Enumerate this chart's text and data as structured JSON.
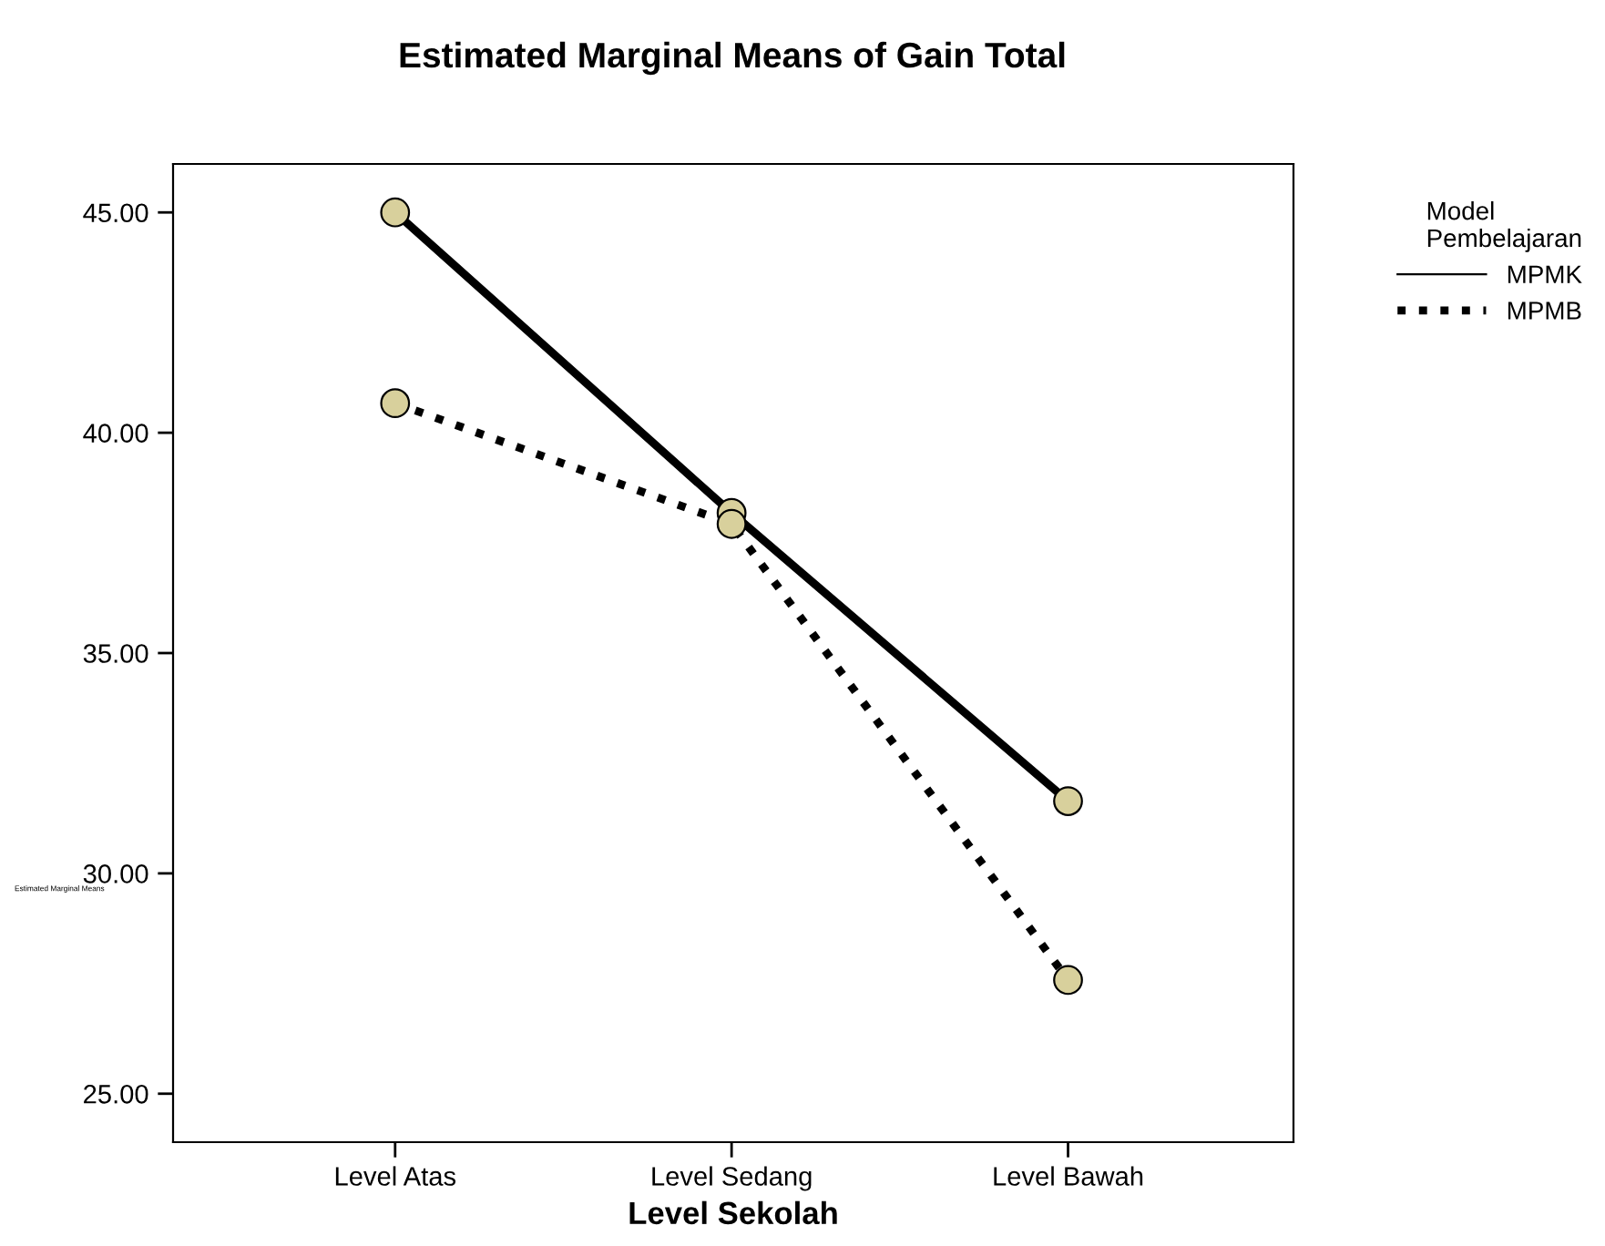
{
  "chart_data": {
    "type": "line",
    "title": "Estimated Marginal Means of Gain Total",
    "xlabel": "Level Sekolah",
    "ylabel": "Estimated Marginal Means",
    "legend_title": "Model\nPembelajaran",
    "categories": [
      "Level Atas",
      "Level Sedang",
      "Level Bawah"
    ],
    "series": [
      {
        "name": "MPMK",
        "color": "#000000",
        "line_style": "solid",
        "values": [
          45.0,
          38.18,
          31.64
        ]
      },
      {
        "name": "MPMB",
        "color": "#000000",
        "line_style": "dotted",
        "values": [
          40.67,
          37.93,
          27.58
        ]
      }
    ],
    "ylim": [
      23.9,
      46.1
    ],
    "yticks": [
      {
        "value": 25,
        "label": "25.00"
      },
      {
        "value": 30,
        "label": "30.00"
      },
      {
        "value": 35,
        "label": "35.00"
      },
      {
        "value": 40,
        "label": "40.00"
      },
      {
        "value": 45,
        "label": "45.00"
      }
    ],
    "marker": "circle",
    "grid": false,
    "legend": "top right"
  }
}
